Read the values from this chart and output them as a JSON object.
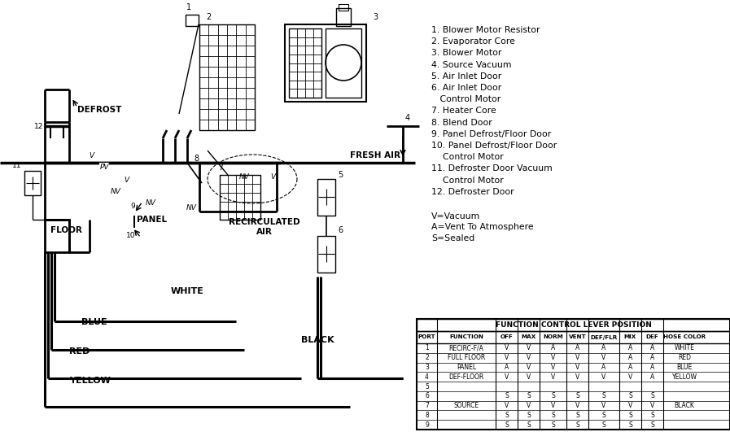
{
  "bg_color": "#ffffff",
  "line_color": "#000000",
  "table_title": "FUNCTION CONTROL LEVER POSITION",
  "table_headers": [
    "PORT",
    "FUNCTION",
    "OFF",
    "MAX",
    "NORM",
    "VENT",
    "DEF/FLR",
    "MIX",
    "DEF",
    "HOSE COLOR"
  ],
  "table_rows": [
    [
      "1",
      "RECIRC-F/A",
      "V",
      "V",
      "A",
      "A",
      "A",
      "A",
      "A",
      "WHITE"
    ],
    [
      "2",
      "FULL FLOOR",
      "V",
      "V",
      "V",
      "V",
      "V",
      "A",
      "A",
      "RED"
    ],
    [
      "3",
      "PANEL",
      "A",
      "V",
      "V",
      "V",
      "A",
      "A",
      "A",
      "BLUE"
    ],
    [
      "4",
      "DEF-FLOOR",
      "V",
      "V",
      "V",
      "V",
      "V",
      "V",
      "A",
      "YELLOW"
    ],
    [
      "5",
      "",
      "",
      "",
      "",
      "",
      "",
      "",
      "",
      ""
    ],
    [
      "6",
      "",
      "S",
      "S",
      "S",
      "S",
      "S",
      "S",
      "S",
      ""
    ],
    [
      "7",
      "SOURCE",
      "V",
      "V",
      "V",
      "V",
      "V",
      "V",
      "V",
      "BLACK"
    ],
    [
      "8",
      "",
      "S",
      "S",
      "S",
      "S",
      "S",
      "S",
      "S",
      ""
    ],
    [
      "9",
      "",
      "S",
      "S",
      "S",
      "S",
      "S",
      "S",
      "S",
      ""
    ]
  ],
  "legend_lines": [
    "1. Blower Motor Resistor",
    "2. Evaporator Core",
    "3. Blower Motor",
    "4. Source Vacuum",
    "5. Air Inlet Door",
    "6. Air Inlet Door",
    "   Control Motor",
    "7. Heater Core",
    "8. Blend Door",
    "9. Panel Defrost/Floor Door",
    "10. Panel Defrost/Floor Door",
    "    Control Motor",
    "11. Defroster Door Vacuum",
    "    Control Motor",
    "12. Defroster Door"
  ],
  "legend_notes": [
    "V=Vacuum",
    "A=Vent To Atmosphere",
    "S=Sealed"
  ]
}
